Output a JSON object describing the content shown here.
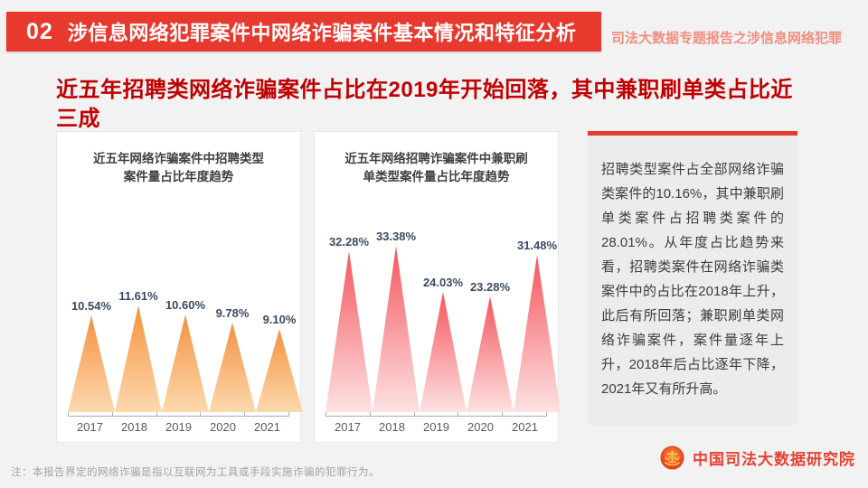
{
  "header": {
    "section_number": "02",
    "title": "涉信息网络犯罪案件中网络诈骗案件基本情况和特征分析",
    "side_label": "司法大数据专题报告之涉信息网络犯罪"
  },
  "headline": {
    "text": "近五年招聘类网络诈骗案件占比在2019年开始回落，其中兼职刷单类占比近三成"
  },
  "chart_data": [
    {
      "type": "bar",
      "bar_shape": "triangle",
      "title": "近五年网络诈骗案件中招聘类型\n案件量占比年度趋势",
      "categories": [
        "2017",
        "2018",
        "2019",
        "2020",
        "2021"
      ],
      "values": [
        10.54,
        11.61,
        10.6,
        9.78,
        9.1
      ],
      "data_labels": [
        "10.54%",
        "11.61%",
        "10.60%",
        "9.78%",
        "9.10%"
      ],
      "xlabel": "",
      "ylabel": "",
      "ylim": [
        0,
        19
      ],
      "grid": false,
      "legend": "none",
      "bar_color_top": "#f5913f",
      "bar_color_bottom": "#fcd9af",
      "label_color": "#3b4a63"
    },
    {
      "type": "bar",
      "bar_shape": "triangle",
      "title": "近五年网络招聘诈骗案件中兼职刷\n单类型案件量占比年度趋势",
      "categories": [
        "2017",
        "2018",
        "2019",
        "2020",
        "2021"
      ],
      "values": [
        32.28,
        33.38,
        24.03,
        23.28,
        31.48
      ],
      "data_labels": [
        "32.28%",
        "33.38%",
        "24.03%",
        "23.28%",
        "31.48%"
      ],
      "xlabel": "",
      "ylabel": "",
      "ylim": [
        0,
        35
      ],
      "grid": false,
      "legend": "none",
      "bar_color_top": "#f4555c",
      "bar_color_bottom": "#fde2e2",
      "label_color": "#3b4a63"
    }
  ],
  "info_panel": {
    "text": "招聘类型案件占全部网络诈骗类案件的10.16%，其中兼职刷单类案件占招聘类案件的28.01%。从年度占比趋势来看，招聘类案件在网络诈骗类案件中的占比在2018年上升，此后有所回落；兼职刷单类网络诈骗案件，案件量逐年上升，2018年后占比逐年下降，2021年又有所升高。"
  },
  "footer": {
    "org_name": "中国司法大数据研究院",
    "note": "注：本报告界定的网络诈骗是指以互联网为工具或手段实施诈骗的犯罪行为。"
  },
  "colors": {
    "banner_red": "#e8392e",
    "headline_red": "#c00000",
    "brand_red": "#e84233",
    "page_bg": "#f2f2f3"
  }
}
